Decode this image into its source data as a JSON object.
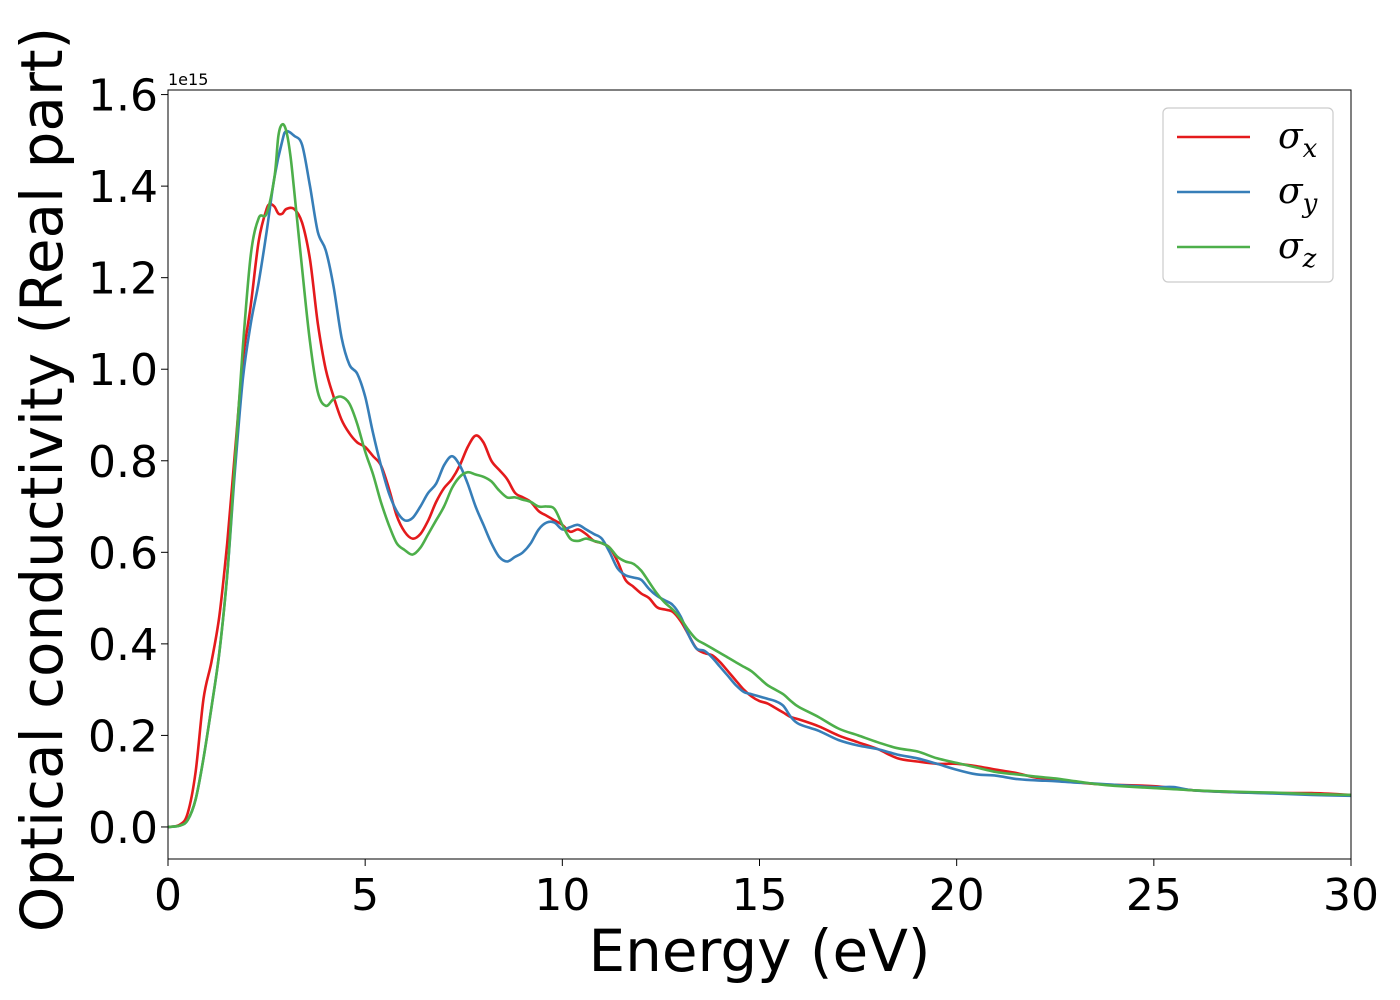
{
  "chart_data": {
    "type": "line",
    "xlabel": "Energy (eV)",
    "ylabel": "Optical conductivity (Real part)",
    "y_offset_text": "1e15",
    "y_scale": 1000000000000000.0,
    "xlim": [
      0,
      30
    ],
    "ylim": [
      -0.07,
      1.61
    ],
    "xticks": [
      0,
      5,
      10,
      15,
      20,
      25,
      30
    ],
    "xtick_labels": [
      "0",
      "5",
      "10",
      "15",
      "20",
      "25",
      "30"
    ],
    "yticks": [
      0.0,
      0.2,
      0.4,
      0.6,
      0.8,
      1.0,
      1.2,
      1.4,
      1.6
    ],
    "ytick_labels": [
      "0.0",
      "0.2",
      "0.4",
      "0.6",
      "0.8",
      "1.0",
      "1.2",
      "1.4",
      "1.6"
    ],
    "grid": false,
    "legend_position": "top-right",
    "series": [
      {
        "name": "σx",
        "symbol": "σ",
        "subscript": "x",
        "color": "#e41a1c",
        "points": [
          [
            0,
            0.0
          ],
          [
            0.3,
            0.005
          ],
          [
            0.5,
            0.03
          ],
          [
            0.7,
            0.12
          ],
          [
            0.9,
            0.28
          ],
          [
            1.1,
            0.36
          ],
          [
            1.3,
            0.46
          ],
          [
            1.5,
            0.62
          ],
          [
            1.7,
            0.82
          ],
          [
            1.9,
            1.02
          ],
          [
            2.1,
            1.14
          ],
          [
            2.3,
            1.28
          ],
          [
            2.5,
            1.35
          ],
          [
            2.6,
            1.36
          ],
          [
            2.7,
            1.355
          ],
          [
            2.8,
            1.34
          ],
          [
            2.9,
            1.34
          ],
          [
            3.0,
            1.35
          ],
          [
            3.2,
            1.35
          ],
          [
            3.4,
            1.32
          ],
          [
            3.6,
            1.24
          ],
          [
            3.8,
            1.1
          ],
          [
            4.0,
            1.0
          ],
          [
            4.2,
            0.94
          ],
          [
            4.4,
            0.89
          ],
          [
            4.6,
            0.86
          ],
          [
            4.8,
            0.84
          ],
          [
            5.0,
            0.83
          ],
          [
            5.2,
            0.81
          ],
          [
            5.4,
            0.79
          ],
          [
            5.6,
            0.74
          ],
          [
            5.8,
            0.68
          ],
          [
            6.0,
            0.645
          ],
          [
            6.2,
            0.63
          ],
          [
            6.4,
            0.64
          ],
          [
            6.6,
            0.67
          ],
          [
            6.8,
            0.71
          ],
          [
            7.0,
            0.74
          ],
          [
            7.2,
            0.76
          ],
          [
            7.4,
            0.79
          ],
          [
            7.6,
            0.83
          ],
          [
            7.8,
            0.855
          ],
          [
            8.0,
            0.84
          ],
          [
            8.2,
            0.8
          ],
          [
            8.4,
            0.78
          ],
          [
            8.6,
            0.76
          ],
          [
            8.8,
            0.73
          ],
          [
            9.0,
            0.72
          ],
          [
            9.2,
            0.71
          ],
          [
            9.4,
            0.69
          ],
          [
            9.6,
            0.68
          ],
          [
            9.8,
            0.67
          ],
          [
            10.0,
            0.66
          ],
          [
            10.2,
            0.645
          ],
          [
            10.4,
            0.65
          ],
          [
            10.6,
            0.64
          ],
          [
            10.8,
            0.625
          ],
          [
            11.0,
            0.62
          ],
          [
            11.2,
            0.61
          ],
          [
            11.4,
            0.58
          ],
          [
            11.6,
            0.54
          ],
          [
            11.8,
            0.525
          ],
          [
            12.0,
            0.51
          ],
          [
            12.2,
            0.5
          ],
          [
            12.4,
            0.48
          ],
          [
            12.6,
            0.475
          ],
          [
            12.8,
            0.47
          ],
          [
            13.0,
            0.45
          ],
          [
            13.2,
            0.42
          ],
          [
            13.4,
            0.39
          ],
          [
            13.6,
            0.38
          ],
          [
            13.8,
            0.375
          ],
          [
            14.0,
            0.36
          ],
          [
            14.2,
            0.34
          ],
          [
            14.4,
            0.32
          ],
          [
            14.6,
            0.3
          ],
          [
            14.8,
            0.285
          ],
          [
            15.0,
            0.275
          ],
          [
            15.2,
            0.27
          ],
          [
            15.4,
            0.26
          ],
          [
            15.6,
            0.25
          ],
          [
            15.8,
            0.24
          ],
          [
            16.0,
            0.235
          ],
          [
            16.5,
            0.22
          ],
          [
            17.0,
            0.2
          ],
          [
            17.5,
            0.185
          ],
          [
            18.0,
            0.17
          ],
          [
            18.5,
            0.15
          ],
          [
            19.0,
            0.143
          ],
          [
            19.5,
            0.138
          ],
          [
            20.0,
            0.138
          ],
          [
            20.5,
            0.133
          ],
          [
            21.0,
            0.125
          ],
          [
            21.5,
            0.118
          ],
          [
            22.0,
            0.108
          ],
          [
            22.5,
            0.104
          ],
          [
            23.0,
            0.098
          ],
          [
            23.5,
            0.094
          ],
          [
            24.0,
            0.092
          ],
          [
            25.0,
            0.089
          ],
          [
            26.0,
            0.08
          ],
          [
            27.0,
            0.076
          ],
          [
            28.0,
            0.074
          ],
          [
            29.0,
            0.074
          ],
          [
            30.0,
            0.07
          ]
        ]
      },
      {
        "name": "σy",
        "symbol": "σ",
        "subscript": "y",
        "color": "#377eb8",
        "points": [
          [
            0,
            0.0
          ],
          [
            0.3,
            0.003
          ],
          [
            0.5,
            0.015
          ],
          [
            0.7,
            0.06
          ],
          [
            0.9,
            0.15
          ],
          [
            1.1,
            0.26
          ],
          [
            1.3,
            0.38
          ],
          [
            1.5,
            0.55
          ],
          [
            1.7,
            0.78
          ],
          [
            1.9,
            0.98
          ],
          [
            2.1,
            1.1
          ],
          [
            2.3,
            1.19
          ],
          [
            2.5,
            1.3
          ],
          [
            2.7,
            1.42
          ],
          [
            2.9,
            1.5
          ],
          [
            3.0,
            1.52
          ],
          [
            3.2,
            1.51
          ],
          [
            3.4,
            1.49
          ],
          [
            3.6,
            1.4
          ],
          [
            3.8,
            1.3
          ],
          [
            4.0,
            1.26
          ],
          [
            4.2,
            1.18
          ],
          [
            4.4,
            1.07
          ],
          [
            4.6,
            1.01
          ],
          [
            4.8,
            0.99
          ],
          [
            5.0,
            0.94
          ],
          [
            5.2,
            0.86
          ],
          [
            5.4,
            0.79
          ],
          [
            5.6,
            0.73
          ],
          [
            5.8,
            0.69
          ],
          [
            6.0,
            0.67
          ],
          [
            6.2,
            0.675
          ],
          [
            6.4,
            0.7
          ],
          [
            6.6,
            0.73
          ],
          [
            6.8,
            0.75
          ],
          [
            7.0,
            0.79
          ],
          [
            7.2,
            0.81
          ],
          [
            7.4,
            0.79
          ],
          [
            7.6,
            0.75
          ],
          [
            7.8,
            0.7
          ],
          [
            8.0,
            0.66
          ],
          [
            8.2,
            0.62
          ],
          [
            8.4,
            0.59
          ],
          [
            8.6,
            0.58
          ],
          [
            8.8,
            0.59
          ],
          [
            9.0,
            0.6
          ],
          [
            9.2,
            0.62
          ],
          [
            9.4,
            0.65
          ],
          [
            9.6,
            0.665
          ],
          [
            9.8,
            0.665
          ],
          [
            10.0,
            0.65
          ],
          [
            10.2,
            0.655
          ],
          [
            10.4,
            0.66
          ],
          [
            10.6,
            0.65
          ],
          [
            10.8,
            0.64
          ],
          [
            11.0,
            0.63
          ],
          [
            11.2,
            0.6
          ],
          [
            11.4,
            0.565
          ],
          [
            11.6,
            0.55
          ],
          [
            11.8,
            0.545
          ],
          [
            12.0,
            0.54
          ],
          [
            12.2,
            0.52
          ],
          [
            12.4,
            0.505
          ],
          [
            12.6,
            0.495
          ],
          [
            12.8,
            0.485
          ],
          [
            13.0,
            0.46
          ],
          [
            13.2,
            0.42
          ],
          [
            13.4,
            0.39
          ],
          [
            13.6,
            0.385
          ],
          [
            13.8,
            0.37
          ],
          [
            14.0,
            0.35
          ],
          [
            14.2,
            0.33
          ],
          [
            14.4,
            0.31
          ],
          [
            14.6,
            0.295
          ],
          [
            14.8,
            0.29
          ],
          [
            15.0,
            0.285
          ],
          [
            15.2,
            0.28
          ],
          [
            15.4,
            0.275
          ],
          [
            15.6,
            0.265
          ],
          [
            15.8,
            0.24
          ],
          [
            16.0,
            0.225
          ],
          [
            16.5,
            0.21
          ],
          [
            17.0,
            0.19
          ],
          [
            17.5,
            0.178
          ],
          [
            18.0,
            0.17
          ],
          [
            18.5,
            0.158
          ],
          [
            19.0,
            0.15
          ],
          [
            19.5,
            0.138
          ],
          [
            20.0,
            0.125
          ],
          [
            20.5,
            0.115
          ],
          [
            21.0,
            0.112
          ],
          [
            21.5,
            0.105
          ],
          [
            22.0,
            0.102
          ],
          [
            22.5,
            0.1
          ],
          [
            23.0,
            0.097
          ],
          [
            23.5,
            0.095
          ],
          [
            24.0,
            0.092
          ],
          [
            25.0,
            0.087
          ],
          [
            25.5,
            0.087
          ],
          [
            26.0,
            0.08
          ],
          [
            27.0,
            0.076
          ],
          [
            28.0,
            0.073
          ],
          [
            29.0,
            0.07
          ],
          [
            30.0,
            0.068
          ]
        ]
      },
      {
        "name": "σz",
        "symbol": "σ",
        "subscript": "z",
        "color": "#4daf4a",
        "points": [
          [
            0,
            0.0
          ],
          [
            0.3,
            0.003
          ],
          [
            0.5,
            0.015
          ],
          [
            0.7,
            0.06
          ],
          [
            0.9,
            0.15
          ],
          [
            1.1,
            0.26
          ],
          [
            1.3,
            0.38
          ],
          [
            1.5,
            0.55
          ],
          [
            1.7,
            0.8
          ],
          [
            1.9,
            1.05
          ],
          [
            2.1,
            1.25
          ],
          [
            2.3,
            1.33
          ],
          [
            2.5,
            1.34
          ],
          [
            2.7,
            1.42
          ],
          [
            2.8,
            1.51
          ],
          [
            2.9,
            1.535
          ],
          [
            3.0,
            1.52
          ],
          [
            3.1,
            1.47
          ],
          [
            3.2,
            1.39
          ],
          [
            3.4,
            1.22
          ],
          [
            3.6,
            1.06
          ],
          [
            3.8,
            0.95
          ],
          [
            4.0,
            0.92
          ],
          [
            4.2,
            0.935
          ],
          [
            4.4,
            0.94
          ],
          [
            4.6,
            0.925
          ],
          [
            4.8,
            0.88
          ],
          [
            5.0,
            0.82
          ],
          [
            5.2,
            0.77
          ],
          [
            5.4,
            0.71
          ],
          [
            5.6,
            0.66
          ],
          [
            5.8,
            0.62
          ],
          [
            6.0,
            0.605
          ],
          [
            6.2,
            0.595
          ],
          [
            6.4,
            0.61
          ],
          [
            6.6,
            0.64
          ],
          [
            6.8,
            0.67
          ],
          [
            7.0,
            0.7
          ],
          [
            7.2,
            0.74
          ],
          [
            7.4,
            0.765
          ],
          [
            7.6,
            0.775
          ],
          [
            7.8,
            0.77
          ],
          [
            8.0,
            0.765
          ],
          [
            8.2,
            0.755
          ],
          [
            8.4,
            0.735
          ],
          [
            8.6,
            0.72
          ],
          [
            8.8,
            0.72
          ],
          [
            9.0,
            0.715
          ],
          [
            9.2,
            0.71
          ],
          [
            9.4,
            0.7
          ],
          [
            9.6,
            0.7
          ],
          [
            9.8,
            0.695
          ],
          [
            10.0,
            0.66
          ],
          [
            10.2,
            0.63
          ],
          [
            10.4,
            0.625
          ],
          [
            10.6,
            0.63
          ],
          [
            10.8,
            0.625
          ],
          [
            11.0,
            0.62
          ],
          [
            11.2,
            0.61
          ],
          [
            11.4,
            0.59
          ],
          [
            11.6,
            0.58
          ],
          [
            11.8,
            0.575
          ],
          [
            12.0,
            0.56
          ],
          [
            12.2,
            0.535
          ],
          [
            12.4,
            0.51
          ],
          [
            12.6,
            0.49
          ],
          [
            12.8,
            0.475
          ],
          [
            13.0,
            0.455
          ],
          [
            13.2,
            0.43
          ],
          [
            13.4,
            0.41
          ],
          [
            13.6,
            0.4
          ],
          [
            13.8,
            0.39
          ],
          [
            14.0,
            0.38
          ],
          [
            14.2,
            0.37
          ],
          [
            14.4,
            0.36
          ],
          [
            14.6,
            0.35
          ],
          [
            14.8,
            0.34
          ],
          [
            15.0,
            0.325
          ],
          [
            15.2,
            0.31
          ],
          [
            15.4,
            0.3
          ],
          [
            15.6,
            0.29
          ],
          [
            15.8,
            0.275
          ],
          [
            16.0,
            0.262
          ],
          [
            16.5,
            0.24
          ],
          [
            17.0,
            0.215
          ],
          [
            17.5,
            0.2
          ],
          [
            18.0,
            0.185
          ],
          [
            18.5,
            0.172
          ],
          [
            19.0,
            0.165
          ],
          [
            19.5,
            0.15
          ],
          [
            20.0,
            0.14
          ],
          [
            20.5,
            0.13
          ],
          [
            21.0,
            0.12
          ],
          [
            21.5,
            0.115
          ],
          [
            22.0,
            0.11
          ],
          [
            22.5,
            0.106
          ],
          [
            23.0,
            0.1
          ],
          [
            23.5,
            0.094
          ],
          [
            24.0,
            0.09
          ],
          [
            25.0,
            0.085
          ],
          [
            26.0,
            0.08
          ],
          [
            27.0,
            0.077
          ],
          [
            28.0,
            0.075
          ],
          [
            29.0,
            0.072
          ],
          [
            30.0,
            0.07
          ]
        ]
      }
    ]
  }
}
